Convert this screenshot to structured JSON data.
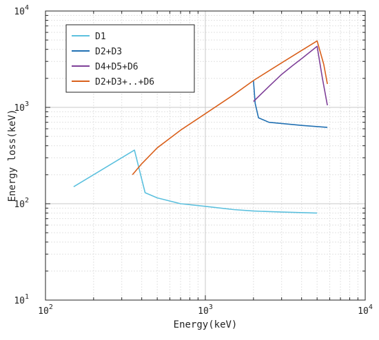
{
  "chart_data": {
    "type": "line",
    "title": "",
    "xlabel": "Energy(keV)",
    "ylabel": "Energy loss(keV)",
    "xscale": "log",
    "yscale": "log",
    "xlim": [
      100,
      10000
    ],
    "ylim": [
      10,
      10000
    ],
    "grid": true,
    "minor_grid": true,
    "legend_position": "top-left",
    "x_ticks": [
      {
        "value": 100,
        "base": "10",
        "exp": "2"
      },
      {
        "value": 1000,
        "base": "10",
        "exp": "3"
      },
      {
        "value": 10000,
        "base": "10",
        "exp": "4"
      }
    ],
    "y_ticks": [
      {
        "value": 10,
        "base": "10",
        "exp": "1"
      },
      {
        "value": 100,
        "base": "10",
        "exp": "2"
      },
      {
        "value": 1000,
        "base": "10",
        "exp": "3"
      },
      {
        "value": 10000,
        "base": "10",
        "exp": "4"
      }
    ],
    "series": [
      {
        "name": "D1",
        "color": "#5bc0de",
        "x": [
          150,
          360,
          420,
          500,
          700,
          1000,
          1500,
          2000,
          3000,
          5000
        ],
        "y": [
          150,
          360,
          130,
          115,
          100,
          94,
          87,
          84,
          82,
          80
        ]
      },
      {
        "name": "D2+D3",
        "color": "#1f6fb2",
        "x": [
          2000,
          2050,
          2150,
          2500,
          3000,
          4000,
          5800
        ],
        "y": [
          1900,
          1100,
          780,
          700,
          680,
          650,
          620
        ]
      },
      {
        "name": "D4+D5+D6",
        "color": "#7e3f98",
        "x": [
          2000,
          2500,
          3000,
          3500,
          4000,
          5000,
          5400,
          5800
        ],
        "y": [
          1150,
          1650,
          2200,
          2700,
          3200,
          4300,
          2000,
          1050
        ]
      },
      {
        "name": "D2+D3+..+D6",
        "color": "#d95f1a",
        "x": [
          350,
          400,
          500,
          700,
          1000,
          1500,
          2000,
          3000,
          4000,
          5000,
          5500,
          5800
        ],
        "y": [
          200,
          260,
          380,
          580,
          860,
          1350,
          1900,
          2900,
          3900,
          4900,
          2800,
          1750
        ]
      }
    ]
  }
}
